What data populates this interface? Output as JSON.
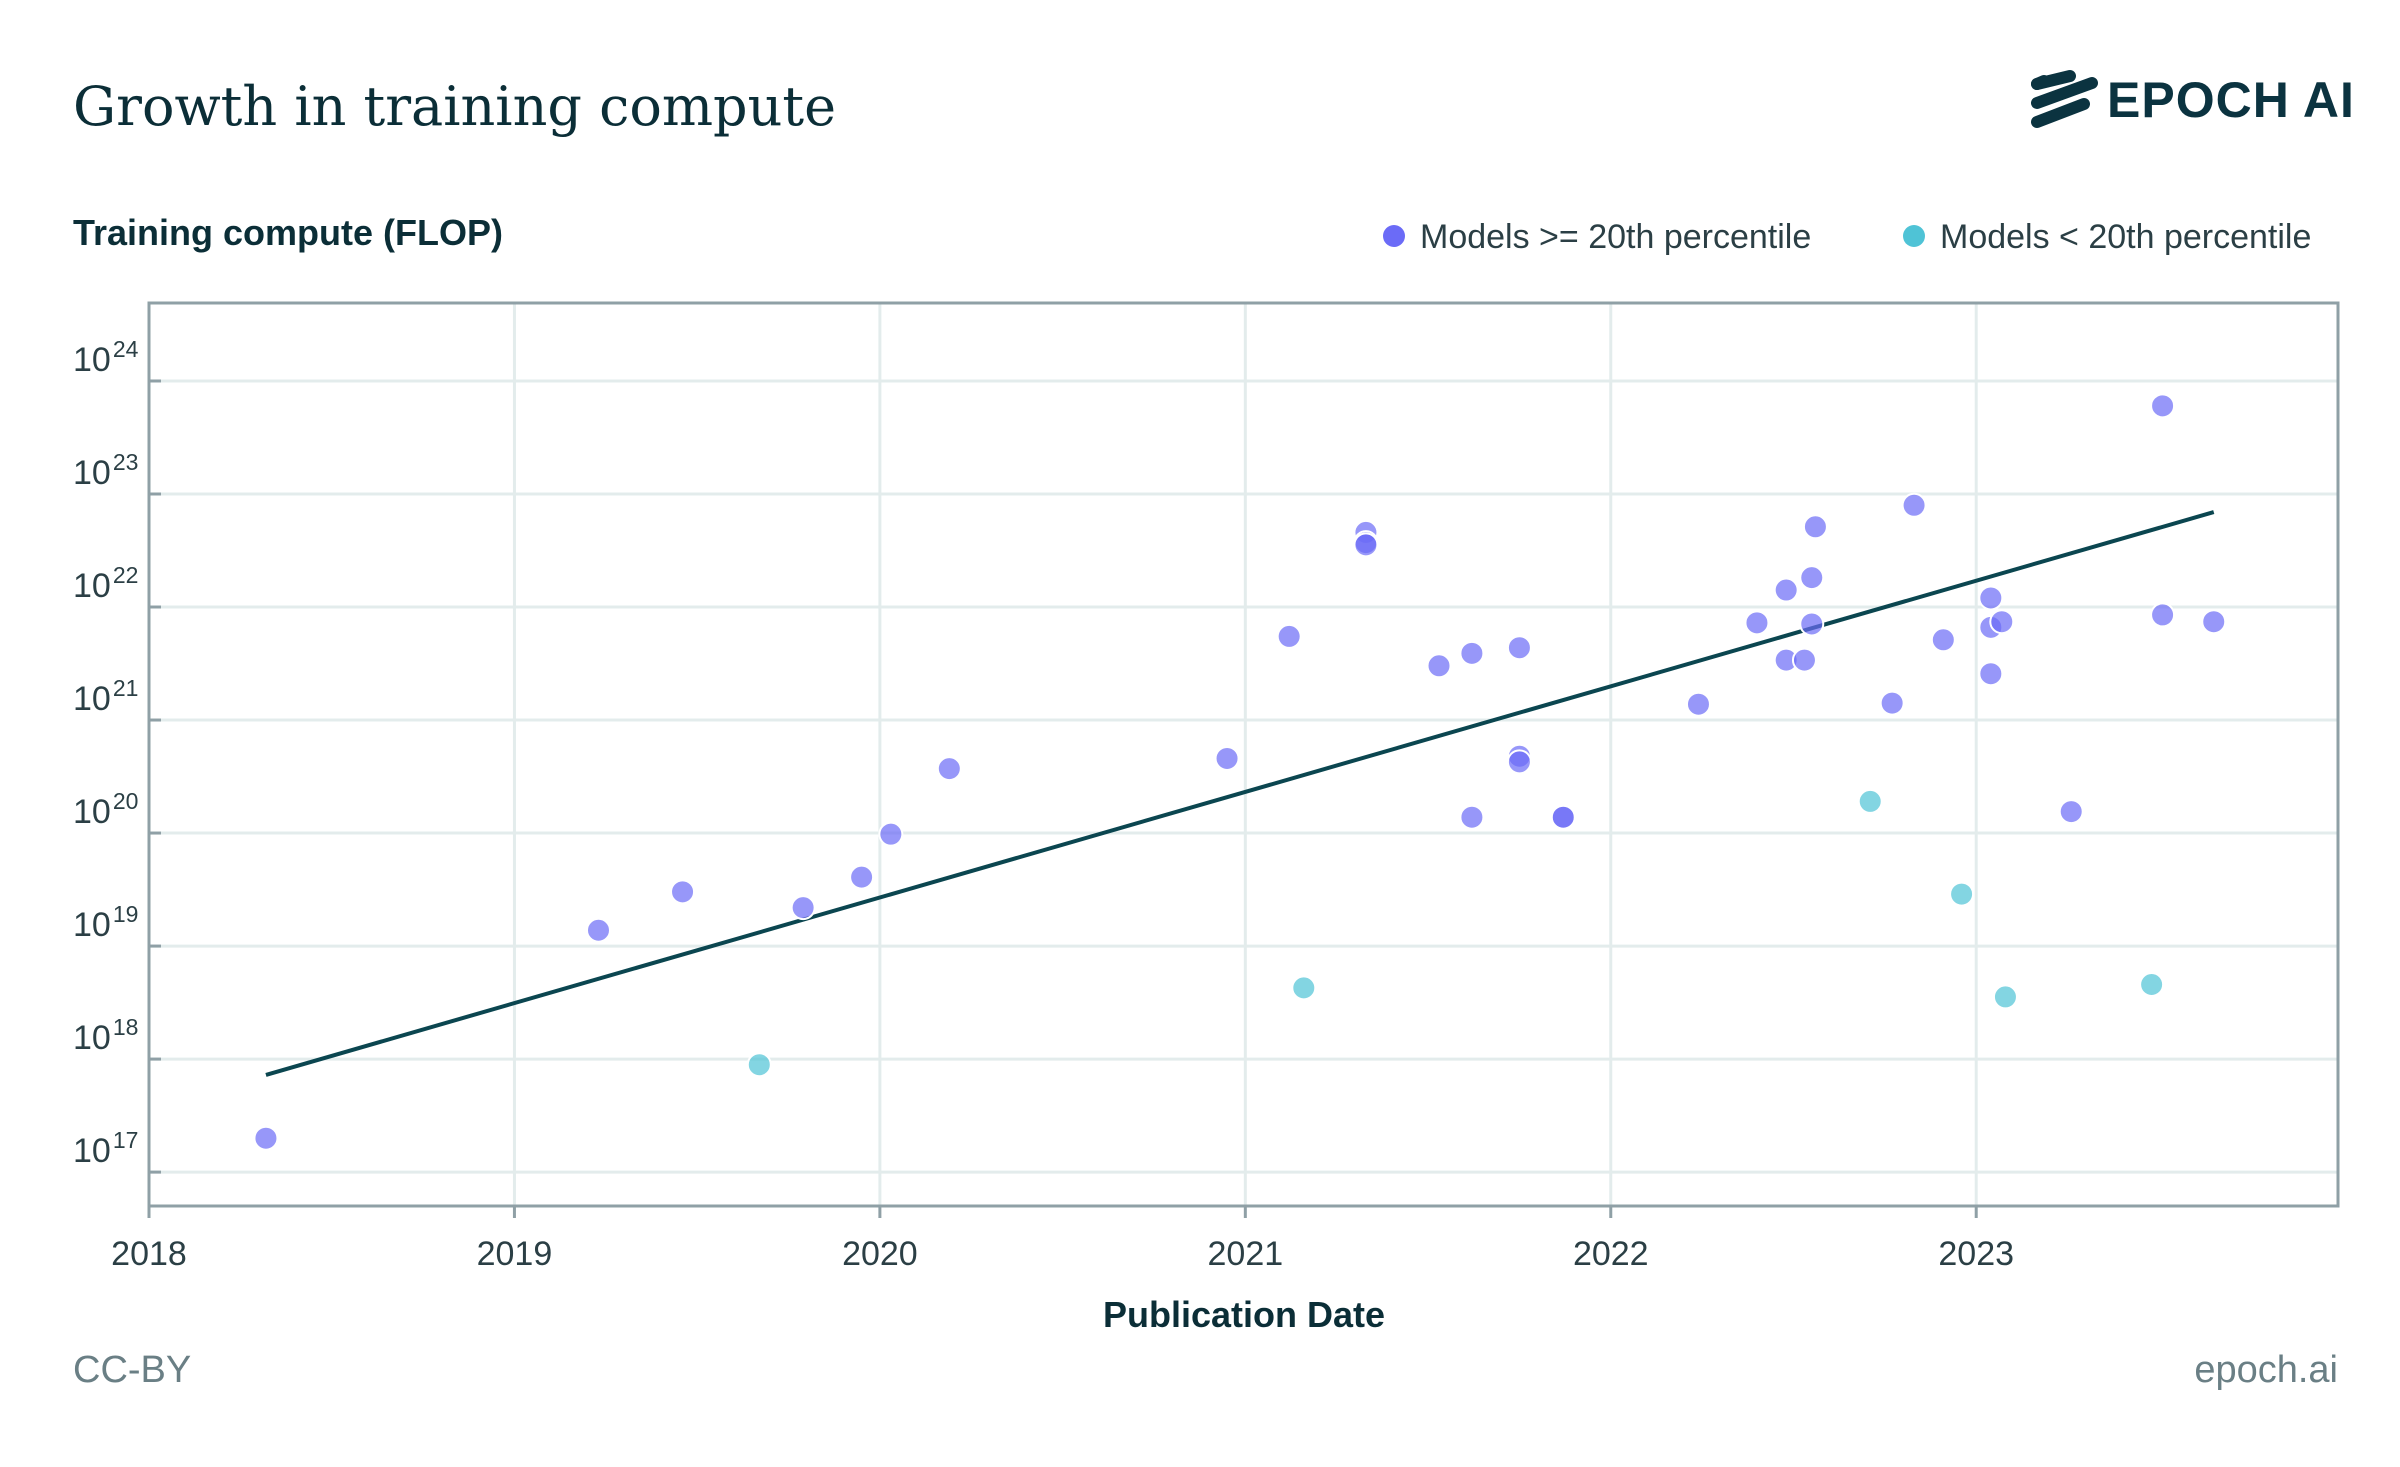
{
  "header": {
    "title": "Growth in training compute",
    "logo": "EPOCH AI"
  },
  "footer": {
    "license": "CC-BY",
    "site": "epoch.ai"
  },
  "chart_data": {
    "type": "scatter",
    "title": "Growth in training compute",
    "ylabel": "Training compute (FLOP)",
    "xlabel": "Publication Date",
    "yscale": "log10",
    "xlim": [
      2018,
      2023.99
    ],
    "ylim_log10": [
      16.7,
      24.69
    ],
    "grid": true,
    "legend_position": "top-right",
    "x_ticks": [
      "2018",
      "2019",
      "2020",
      "2021",
      "2022",
      "2023"
    ],
    "y_ticks": [
      {
        "base": "10",
        "exp": "17"
      },
      {
        "base": "10",
        "exp": "18"
      },
      {
        "base": "10",
        "exp": "19"
      },
      {
        "base": "10",
        "exp": "20"
      },
      {
        "base": "10",
        "exp": "21"
      },
      {
        "base": "10",
        "exp": "22"
      },
      {
        "base": "10",
        "exp": "23"
      },
      {
        "base": "10",
        "exp": "24"
      }
    ],
    "colors": {
      "high": "#6b6bf7",
      "low": "#4fc3d6",
      "trend": "#0b4650"
    },
    "series": [
      {
        "name": "Models >= 20th percentile",
        "key": "high",
        "points": [
          [
            2018.32,
            17.3
          ],
          [
            2019.23,
            19.14
          ],
          [
            2019.46,
            19.48
          ],
          [
            2019.79,
            19.34
          ],
          [
            2019.95,
            19.61
          ],
          [
            2020.03,
            19.99
          ],
          [
            2020.19,
            20.57
          ],
          [
            2020.95,
            20.66
          ],
          [
            2021.12,
            21.74
          ],
          [
            2021.33,
            22.66
          ],
          [
            2021.33,
            22.57
          ],
          [
            2021.33,
            22.55
          ],
          [
            2021.53,
            21.48
          ],
          [
            2021.62,
            21.59
          ],
          [
            2021.62,
            20.14
          ],
          [
            2021.75,
            21.64
          ],
          [
            2021.75,
            20.68
          ],
          [
            2021.75,
            20.63
          ],
          [
            2021.87,
            20.14
          ],
          [
            2021.87,
            20.14
          ],
          [
            2022.24,
            21.14
          ],
          [
            2022.4,
            21.86
          ],
          [
            2022.48,
            22.15
          ],
          [
            2022.48,
            21.53
          ],
          [
            2022.53,
            21.53
          ],
          [
            2022.55,
            21.85
          ],
          [
            2022.55,
            22.26
          ],
          [
            2022.56,
            22.71
          ],
          [
            2022.77,
            21.15
          ],
          [
            2022.83,
            22.9
          ],
          [
            2022.91,
            21.71
          ],
          [
            2023.04,
            22.08
          ],
          [
            2023.04,
            21.82
          ],
          [
            2023.07,
            21.87
          ],
          [
            2023.04,
            21.41
          ],
          [
            2023.26,
            20.19
          ],
          [
            2023.51,
            23.78
          ],
          [
            2023.51,
            21.93
          ],
          [
            2023.65,
            21.87
          ]
        ]
      },
      {
        "name": "Models < 20th percentile",
        "key": "low",
        "points": [
          [
            2019.67,
            17.95
          ],
          [
            2021.16,
            18.63
          ],
          [
            2022.71,
            20.28
          ],
          [
            2022.96,
            19.46
          ],
          [
            2023.08,
            18.55
          ],
          [
            2023.48,
            18.66
          ]
        ]
      }
    ],
    "trend_line": [
      [
        2018.32,
        17.86
      ],
      [
        2023.65,
        22.84
      ]
    ]
  }
}
